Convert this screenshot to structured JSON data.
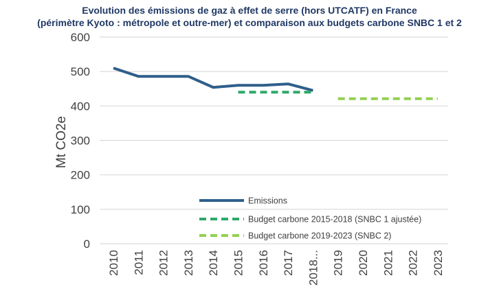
{
  "chart_data": {
    "type": "line",
    "title_line1": "Evolution des émissions de gaz à effet de serre (hors UTCATF) en France",
    "title_line2": "(périmètre Kyoto : métropole et outre-mer) et comparaison aux budgets carbone SNBC 1 et 2",
    "xlabel": "",
    "ylabel": "Mt CO2e",
    "ylim": [
      0,
      600
    ],
    "yticks": [
      "0",
      "100",
      "200",
      "300",
      "400",
      "500",
      "600"
    ],
    "categories": [
      "2010",
      "2011",
      "2012",
      "2013",
      "2014",
      "2015",
      "2016",
      "2017",
      "2018...",
      "2019",
      "2020",
      "2021",
      "2022",
      "2023"
    ],
    "grid": true,
    "legend_position": "bottom-center",
    "series": [
      {
        "name": "Emissions",
        "color": "#2e5f8a",
        "style": "solid",
        "points": [
          {
            "x": "2010",
            "y": 510
          },
          {
            "x": "2011",
            "y": 486
          },
          {
            "x": "2012",
            "y": 486
          },
          {
            "x": "2013",
            "y": 486
          },
          {
            "x": "2014",
            "y": 454
          },
          {
            "x": "2015",
            "y": 460
          },
          {
            "x": "2016",
            "y": 460
          },
          {
            "x": "2017",
            "y": 464
          },
          {
            "x": "2018...",
            "y": 445
          }
        ]
      },
      {
        "name": "Budget carbone 2015-2018 (SNBC 1 ajustée)",
        "color": "#2ea869",
        "style": "dashed",
        "points": [
          {
            "x": "2015",
            "y": 440
          },
          {
            "x": "2016",
            "y": 440
          },
          {
            "x": "2017",
            "y": 440
          },
          {
            "x": "2018...",
            "y": 440
          }
        ]
      },
      {
        "name": "Budget carbone 2019-2023 (SNBC 2)",
        "color": "#92d050",
        "style": "dashed",
        "points": [
          {
            "x": "2019",
            "y": 421
          },
          {
            "x": "2020",
            "y": 421
          },
          {
            "x": "2021",
            "y": 421
          },
          {
            "x": "2022",
            "y": 421
          },
          {
            "x": "2023",
            "y": 421
          }
        ]
      }
    ]
  }
}
